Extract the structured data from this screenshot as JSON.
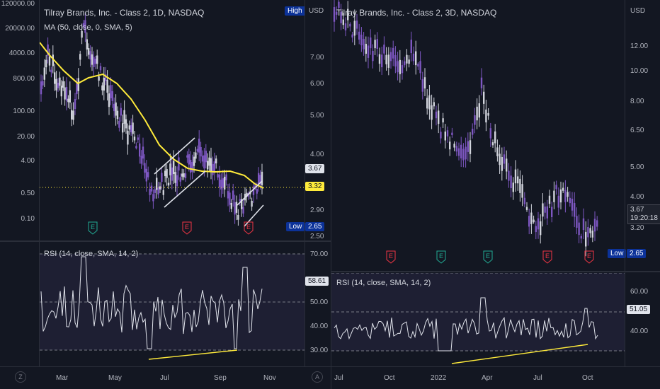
{
  "colors": {
    "background": "#131722",
    "candle": "#7e57c2",
    "candle_up": "#d1d4dc",
    "ma_line": "#ffeb3b",
    "rsi_line": "#e0e3eb",
    "rsi_band": "#1e1f33",
    "trendline": "#ffeb3b",
    "pattern": "#e0e3eb",
    "earnings": "#f23645",
    "earnings_past": "#22ab94",
    "label_dark": "#0c3299"
  },
  "left": {
    "title": "Tilray Brands, Inc. - Class 2, 1D, NASDAQ",
    "indicator": "MA (50, close, 0, SMA, 5)",
    "high_tag": "High",
    "currency": "USD",
    "left_scale": [
      "120000.00",
      "20000.00",
      "4000.00",
      "800.00",
      "100.00",
      "20.00",
      "4.00",
      "0.50",
      "0.10"
    ],
    "right_scale": [
      "7.00",
      "6.00",
      "5.00",
      "4.00",
      "2.90",
      "2.50"
    ],
    "price_tag": "3.67",
    "ma_tag": "3.32",
    "low_label": "Low",
    "low_value": "2.65",
    "rsi_title": "RSI (14, close, SMA, 14, 2)",
    "rsi_scale": [
      "70.00",
      "50.00",
      "40.00",
      "30.00"
    ],
    "rsi_tag": "58.61",
    "x_labels": [
      "Mar",
      "May",
      "Jul",
      "Sep",
      "Nov"
    ],
    "earnings_markers": [
      "E",
      "E",
      "E"
    ],
    "icons": {
      "timezone": "Z"
    }
  },
  "right": {
    "title": "Tilray Brands, Inc. - Class 2, 3D, NASDAQ",
    "currency": "USD",
    "right_scale": [
      "12.00",
      "10.00",
      "8.00",
      "6.50",
      "5.00",
      "4.00",
      "3.20"
    ],
    "price_tag": "3.67",
    "countdown": "19:20:18",
    "low_label": "Low",
    "low_value": "2.65",
    "rsi_title": "RSI (14, close, SMA, 14, 2)",
    "rsi_scale": [
      "60.00",
      "40.00"
    ],
    "rsi_tag": "51.05",
    "x_labels": [
      "Jul",
      "Oct",
      "2022",
      "Apr",
      "Jul",
      "Oct"
    ],
    "earnings_markers": [
      "E",
      "E",
      "E",
      "E",
      "E"
    ],
    "icons": {
      "auto": "A"
    }
  }
}
